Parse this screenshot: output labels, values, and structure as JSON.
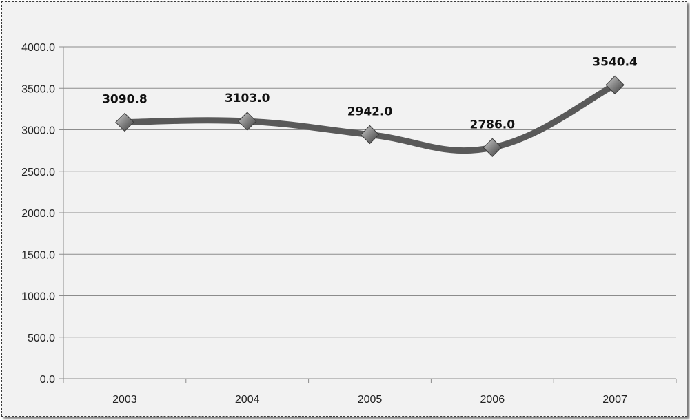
{
  "chart_data": {
    "type": "line",
    "title": "",
    "xlabel": "",
    "ylabel": "",
    "categories": [
      "2003",
      "2004",
      "2005",
      "2006",
      "2007"
    ],
    "series": [
      {
        "values": [
          3090.8,
          3103.0,
          2942.0,
          2786.0,
          3540.4
        ],
        "labels": [
          "3090.8",
          "3103.0",
          "2942.0",
          "2786.0",
          "3540.4"
        ],
        "color": "#595959",
        "marker": "diamond",
        "smooth": true
      }
    ],
    "ylim": [
      0,
      4000
    ],
    "yticks": [
      0,
      500,
      1000,
      1500,
      2000,
      2500,
      3000,
      3500,
      4000
    ],
    "ytick_labels": [
      "0.0",
      "500.0",
      "1000.0",
      "1500.0",
      "2000.0",
      "2500.0",
      "3000.0",
      "3500.0",
      "4000.0"
    ],
    "grid": true,
    "legend": "none",
    "colors": {
      "background": "#f2f2f2",
      "gridline": "#8c8c8c",
      "axis": "#8c8c8c"
    }
  }
}
